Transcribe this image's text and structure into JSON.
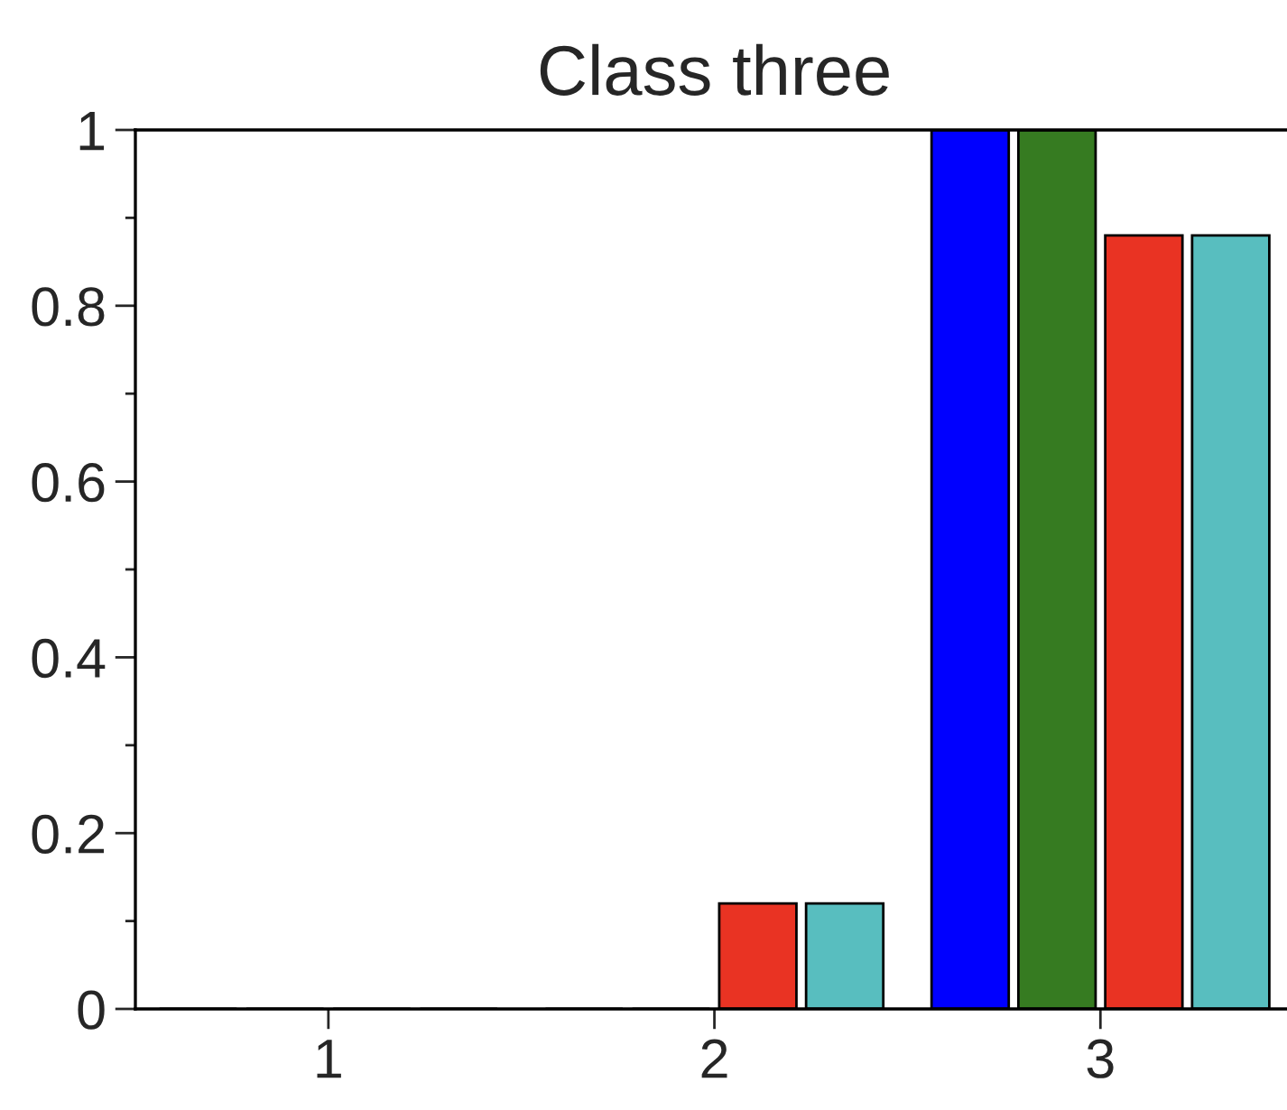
{
  "chart_data": {
    "type": "bar",
    "title": "Class three",
    "categories": [
      "1",
      "2",
      "3"
    ],
    "series": [
      {
        "color": "#0000ff",
        "values": [
          0,
          0,
          1
        ]
      },
      {
        "color": "#367b21",
        "values": [
          0,
          0,
          1
        ]
      },
      {
        "color": "#e93323",
        "values": [
          0,
          0.12,
          0.88
        ]
      },
      {
        "color": "#58bebf",
        "values": [
          0,
          0.12,
          0.88
        ]
      }
    ],
    "ylim": [
      0,
      1
    ],
    "yticks": [
      0,
      {
        "value": 0.1,
        "label": null
      },
      0.2,
      {
        "value": 0.3,
        "label": null
      },
      0.4,
      {
        "value": 0.5,
        "label": null
      },
      0.6,
      {
        "value": 0.7,
        "label": null
      },
      0.8,
      {
        "value": 0.9,
        "label": null
      },
      1
    ],
    "grid": false,
    "legend": false
  }
}
